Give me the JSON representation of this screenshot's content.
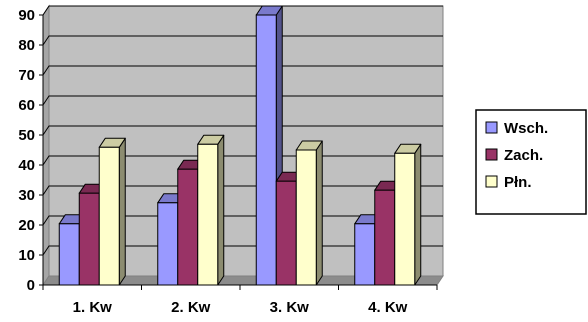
{
  "chart_data": {
    "type": "bar",
    "variant": "3d-clustered-column",
    "categories": [
      "1. Kw",
      "2. Kw",
      "3. Kw",
      "4. Kw"
    ],
    "series": [
      {
        "name": "Wsch.",
        "color": "#9999ff",
        "values": [
          20.4,
          27.4,
          90,
          20.4
        ]
      },
      {
        "name": "Zach.",
        "color": "#993366",
        "values": [
          30.6,
          38.6,
          34.6,
          31.6
        ]
      },
      {
        "name": "Płn.",
        "color": "#ffffcc",
        "values": [
          45.9,
          46.9,
          45,
          43.9
        ]
      }
    ],
    "ylim": [
      0,
      90
    ],
    "yticks": [
      0,
      10,
      20,
      30,
      40,
      50,
      60,
      70,
      80,
      90
    ],
    "grid": true,
    "legend_position": "right",
    "plot_background": "#c0c0c0"
  }
}
